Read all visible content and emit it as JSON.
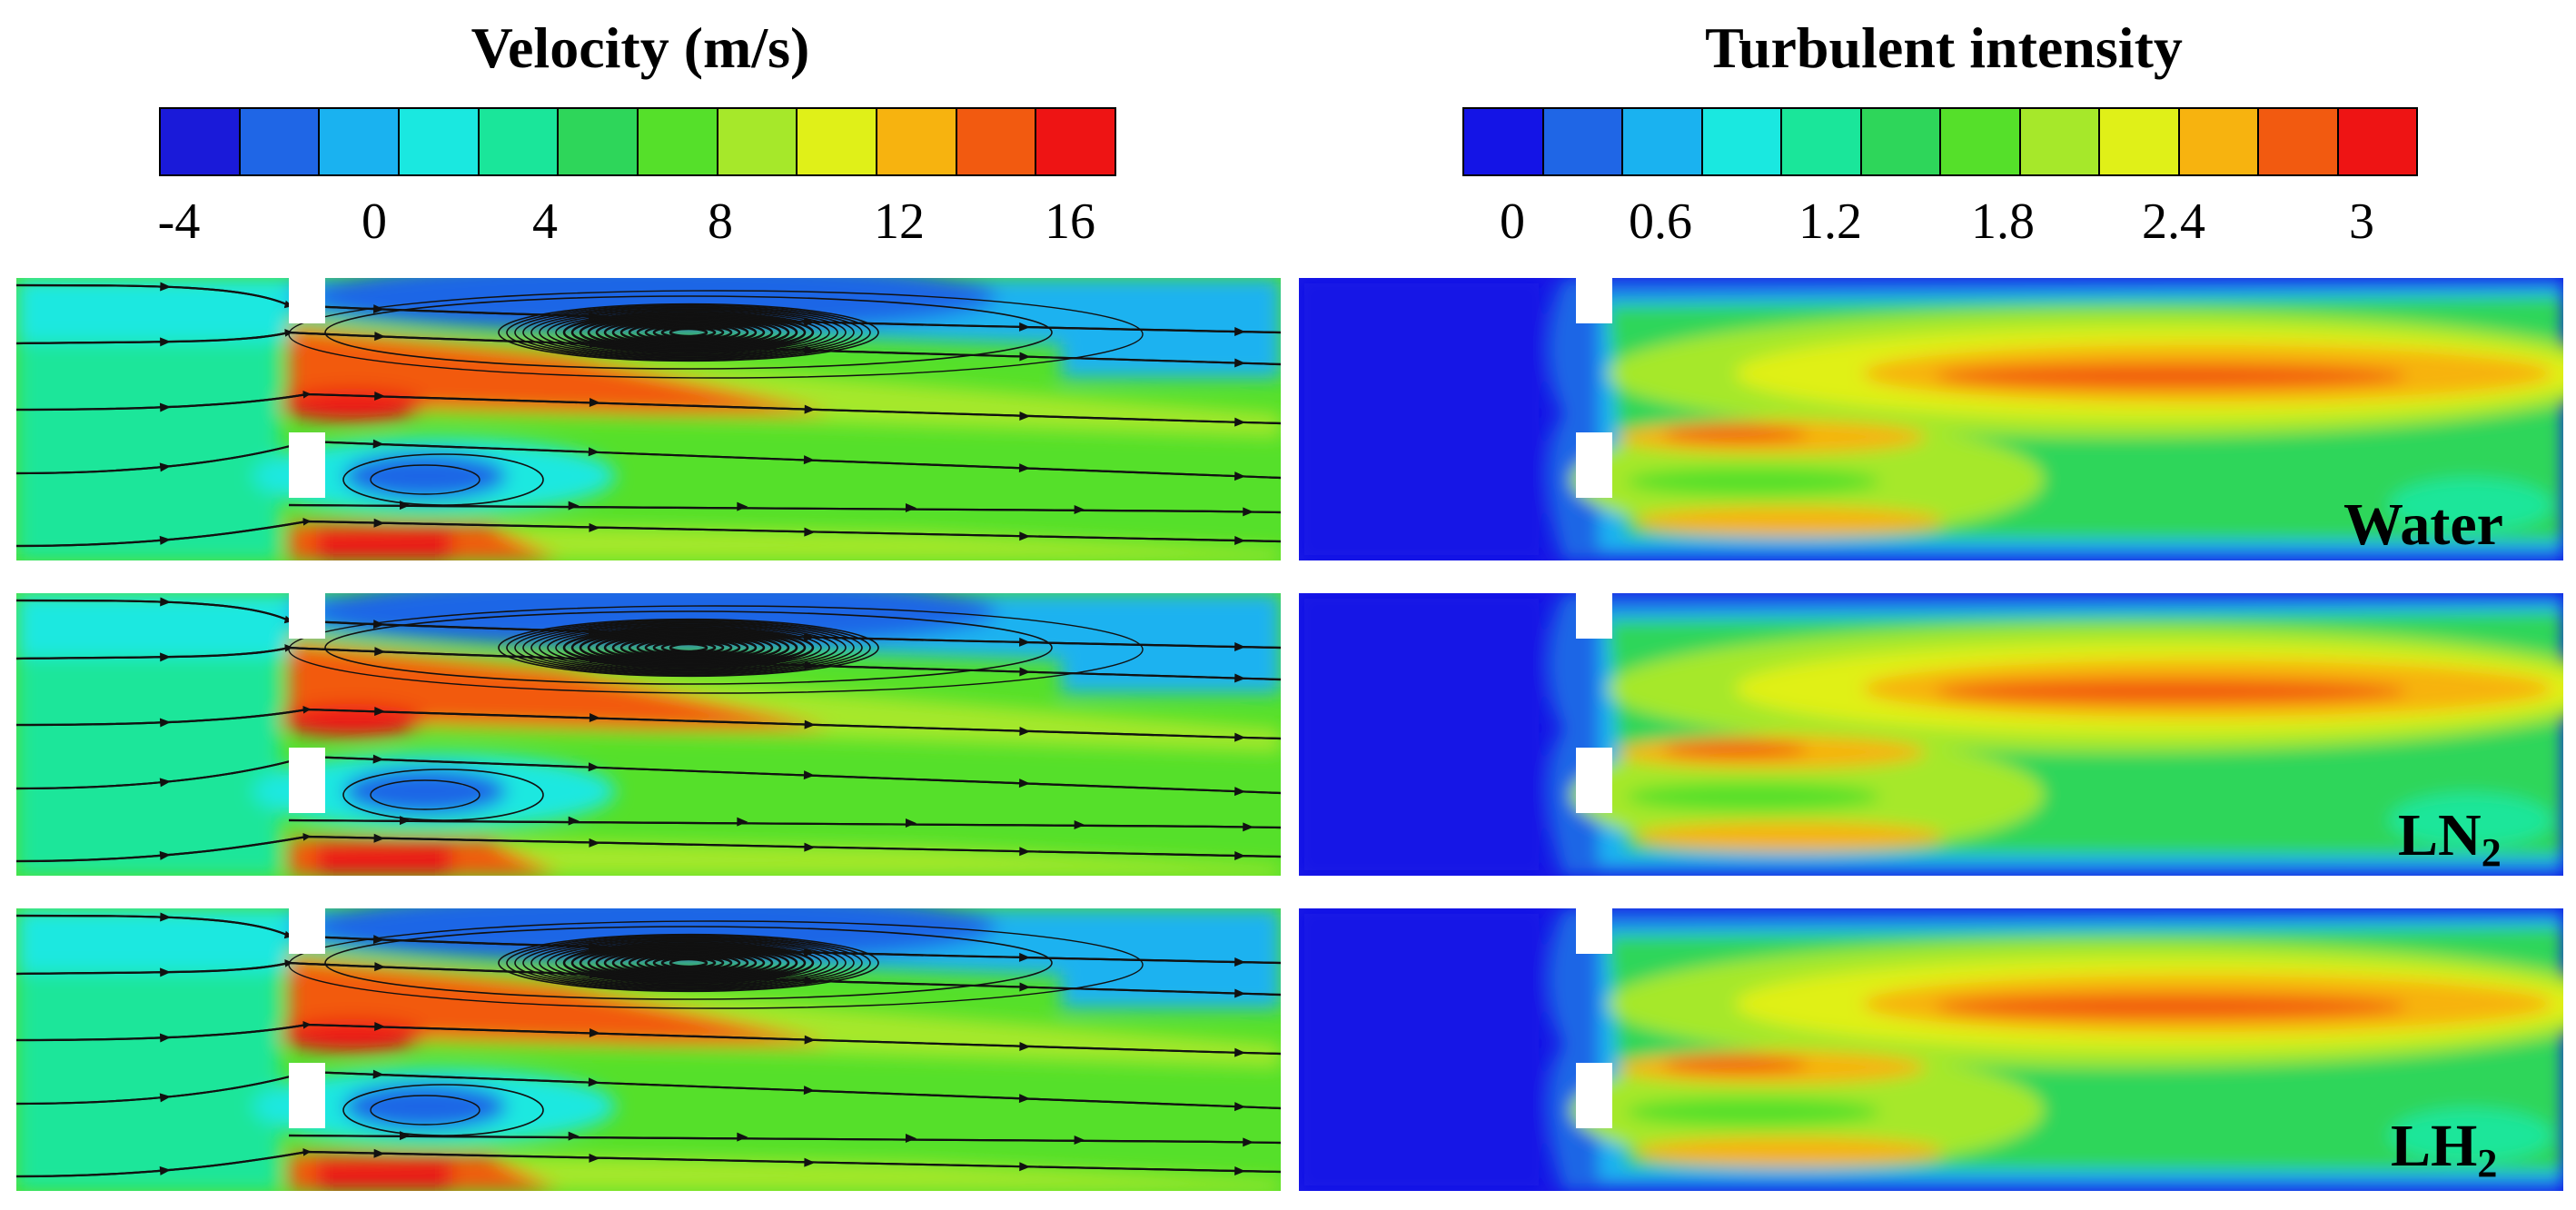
{
  "velocity": {
    "title": "Velocity (m/s)",
    "ticks": [
      "-4",
      "0",
      "4",
      "8",
      "12",
      "16"
    ],
    "colors": [
      "#1a1ad9",
      "#1f66e6",
      "#1ab2f0",
      "#1ae8e0",
      "#1ae69a",
      "#2ed65a",
      "#55e02a",
      "#a6e82a",
      "#e0f018",
      "#f7b30f",
      "#f25a10",
      "#ee1414"
    ]
  },
  "turbulent": {
    "title": "Turbulent intensity",
    "ticks": [
      "0",
      "0.6",
      "1.2",
      "1.8",
      "2.4",
      "3"
    ],
    "colors": [
      "#1414e6",
      "#1f66e6",
      "#1ab2f0",
      "#1ae8e0",
      "#1ae69a",
      "#2ed65a",
      "#55e02a",
      "#a6e82a",
      "#e0f018",
      "#f7b30f",
      "#f25a10",
      "#ee1414"
    ]
  },
  "rows": [
    {
      "fluid": "Water",
      "sub": ""
    },
    {
      "fluid": "LN",
      "sub": "2"
    },
    {
      "fluid": "LH",
      "sub": "2"
    }
  ]
}
